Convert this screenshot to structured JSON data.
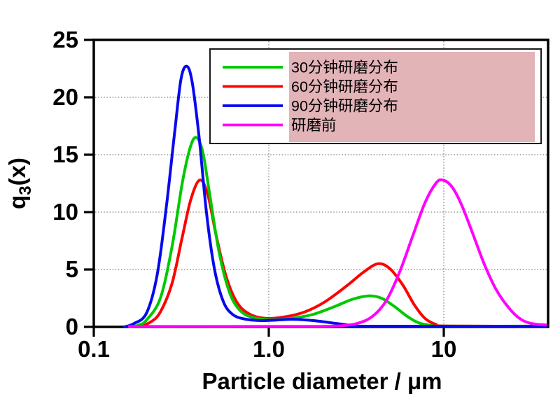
{
  "chart_data": {
    "type": "line",
    "title": "",
    "xlabel": "Particle diameter / μm",
    "ylabel": "q3(x)",
    "ylabel_parts": {
      "base": "q",
      "sub": "3",
      "rest": "(x)"
    },
    "x_scale": "log",
    "xlim": [
      0.1,
      40
    ],
    "ylim": [
      0,
      25
    ],
    "x_ticks": [
      {
        "v": 0.1,
        "label": "0.1"
      },
      {
        "v": 1.0,
        "label": "1.0"
      },
      {
        "v": 10,
        "label": "10"
      }
    ],
    "y_ticks": [
      {
        "v": 0,
        "label": "0"
      },
      {
        "v": 5,
        "label": "5"
      },
      {
        "v": 10,
        "label": "10"
      },
      {
        "v": 15,
        "label": "15"
      },
      {
        "v": 20,
        "label": "20"
      },
      {
        "v": 25,
        "label": "25"
      }
    ],
    "x_gridlines": [
      1.0,
      10
    ],
    "y_gridlines": [
      5,
      10,
      15,
      20
    ],
    "grid": "dotted",
    "legend_position": "top-right",
    "legend_highlight_color": "#e2b3b7",
    "series": [
      {
        "name": "30分钟研磨分布",
        "color": "#00c800",
        "peak_summary": [
          {
            "x_um": 0.38,
            "q3": 16.5
          },
          {
            "x_um": 3.7,
            "q3": 2.7
          }
        ],
        "points": [
          [
            0.16,
            0
          ],
          [
            0.18,
            0.15
          ],
          [
            0.2,
            0.6
          ],
          [
            0.24,
            2.5
          ],
          [
            0.28,
            7
          ],
          [
            0.32,
            12.5
          ],
          [
            0.355,
            15.6
          ],
          [
            0.385,
            16.5
          ],
          [
            0.42,
            15.2
          ],
          [
            0.46,
            11.5
          ],
          [
            0.52,
            6.5
          ],
          [
            0.6,
            2.9
          ],
          [
            0.7,
            1.3
          ],
          [
            0.85,
            0.75
          ],
          [
            1.05,
            0.62
          ],
          [
            1.35,
            0.75
          ],
          [
            1.8,
            1.1
          ],
          [
            2.4,
            1.8
          ],
          [
            3.0,
            2.4
          ],
          [
            3.7,
            2.7
          ],
          [
            4.4,
            2.5
          ],
          [
            5.2,
            1.8
          ],
          [
            6.2,
            0.9
          ],
          [
            7.2,
            0.35
          ],
          [
            8.5,
            0.12
          ],
          [
            10,
            0.07
          ],
          [
            40,
            0.07
          ]
        ]
      },
      {
        "name": "60分钟研磨分布",
        "color": "#ff0000",
        "peak_summary": [
          {
            "x_um": 0.4,
            "q3": 12.8
          },
          {
            "x_um": 4.2,
            "q3": 5.5
          }
        ],
        "points": [
          [
            0.18,
            0
          ],
          [
            0.21,
            0.4
          ],
          [
            0.24,
            1.3
          ],
          [
            0.28,
            3.8
          ],
          [
            0.32,
            7.8
          ],
          [
            0.36,
            11.2
          ],
          [
            0.405,
            12.8
          ],
          [
            0.45,
            11.4
          ],
          [
            0.5,
            8.0
          ],
          [
            0.57,
            4.4
          ],
          [
            0.66,
            2.1
          ],
          [
            0.78,
            1.1
          ],
          [
            0.95,
            0.75
          ],
          [
            1.2,
            0.85
          ],
          [
            1.6,
            1.3
          ],
          [
            2.1,
            2.2
          ],
          [
            2.8,
            3.6
          ],
          [
            3.5,
            4.8
          ],
          [
            4.2,
            5.5
          ],
          [
            4.9,
            5.1
          ],
          [
            5.8,
            3.7
          ],
          [
            6.8,
            1.9
          ],
          [
            7.8,
            0.75
          ],
          [
            9.0,
            0.22
          ],
          [
            10.5,
            0.08
          ],
          [
            40,
            0.06
          ]
        ]
      },
      {
        "name": "90分钟研磨分布",
        "color": "#0808f0",
        "peak_summary": [
          {
            "x_um": 0.34,
            "q3": 22.7
          }
        ],
        "points": [
          [
            0.15,
            0
          ],
          [
            0.17,
            0.3
          ],
          [
            0.2,
            1.2
          ],
          [
            0.23,
            4.5
          ],
          [
            0.26,
            10.5
          ],
          [
            0.29,
            17
          ],
          [
            0.315,
            21.6
          ],
          [
            0.34,
            22.7
          ],
          [
            0.365,
            21.3
          ],
          [
            0.4,
            16.5
          ],
          [
            0.44,
            10
          ],
          [
            0.49,
            5
          ],
          [
            0.55,
            2.2
          ],
          [
            0.62,
            1.1
          ],
          [
            0.72,
            0.7
          ],
          [
            0.9,
            0.55
          ],
          [
            1.1,
            0.6
          ],
          [
            1.4,
            0.66
          ],
          [
            1.8,
            0.55
          ],
          [
            2.3,
            0.35
          ],
          [
            2.9,
            0.15
          ],
          [
            3.6,
            0.06
          ],
          [
            40,
            0.05
          ]
        ]
      },
      {
        "name": "研磨前",
        "color": "#ff00ff",
        "peak_summary": [
          {
            "x_um": 9.8,
            "q3": 12.8
          }
        ],
        "points": [
          [
            0.16,
            0.04
          ],
          [
            1.0,
            0.04
          ],
          [
            2.0,
            0.05
          ],
          [
            2.6,
            0.1
          ],
          [
            3.2,
            0.3
          ],
          [
            3.9,
            0.9
          ],
          [
            4.7,
            2.3
          ],
          [
            5.6,
            4.8
          ],
          [
            6.6,
            7.8
          ],
          [
            7.8,
            10.8
          ],
          [
            9.0,
            12.5
          ],
          [
            9.8,
            12.8
          ],
          [
            11,
            12.3
          ],
          [
            12.5,
            10.8
          ],
          [
            14.5,
            8.3
          ],
          [
            17,
            5.5
          ],
          [
            20,
            3.2
          ],
          [
            24,
            1.5
          ],
          [
            28,
            0.6
          ],
          [
            33,
            0.25
          ],
          [
            40,
            0.15
          ]
        ]
      }
    ]
  }
}
